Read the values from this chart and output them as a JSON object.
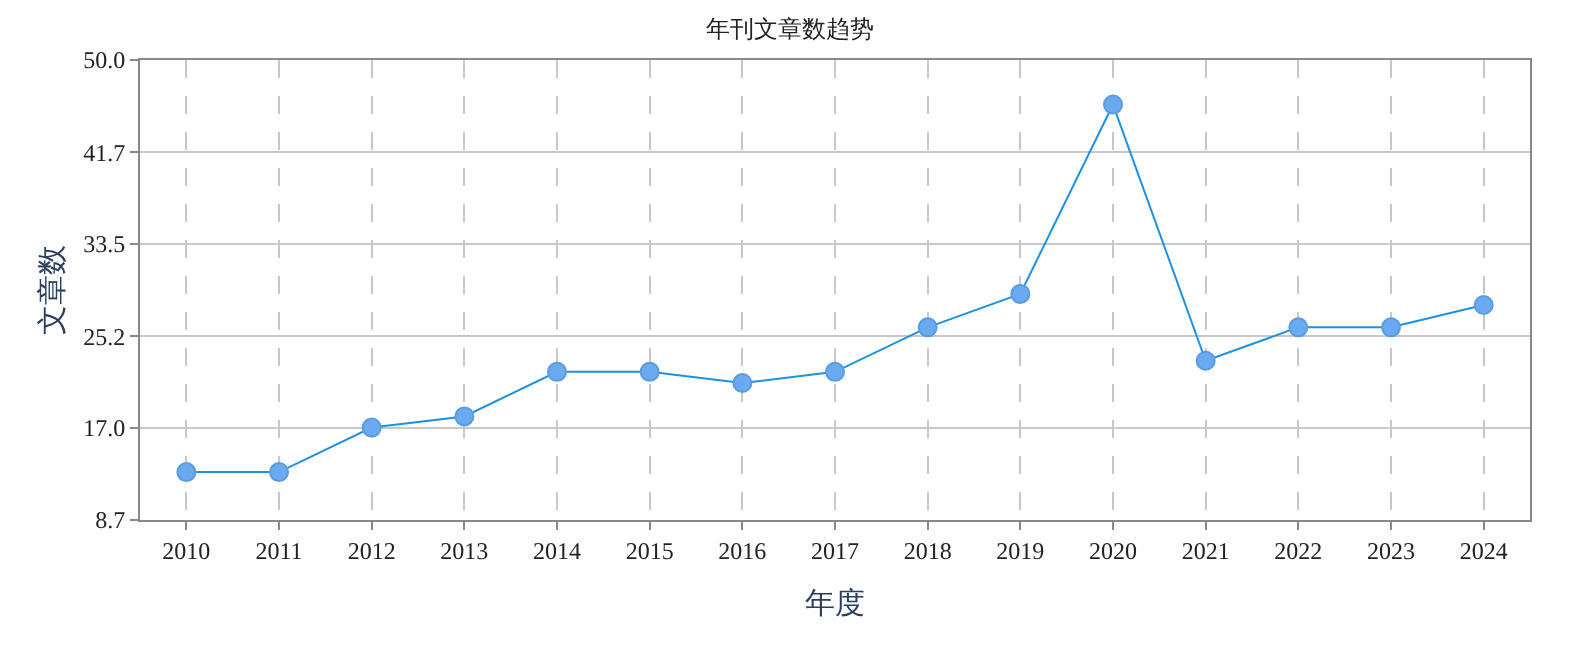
{
  "chart_data": {
    "type": "line",
    "title": "年刊文章数趋势",
    "xlabel": "年度",
    "ylabel": "文章数",
    "categories": [
      "2010",
      "2011",
      "2012",
      "2013",
      "2014",
      "2015",
      "2016",
      "2017",
      "2018",
      "2019",
      "2020",
      "2021",
      "2022",
      "2023",
      "2024"
    ],
    "series": [
      {
        "color": "#1e90e0",
        "values": [
          13,
          13,
          17,
          18,
          22,
          22,
          21,
          22,
          26,
          29,
          46,
          23,
          26,
          26,
          28
        ]
      }
    ],
    "ylim": [
      8.7,
      50.0
    ],
    "yticks": [
      {
        "value": 8.7,
        "label": "8.7"
      },
      {
        "value": 17.0,
        "label": "17.0"
      },
      {
        "value": 25.2,
        "label": "25.2"
      },
      {
        "value": 33.5,
        "label": "33.5"
      },
      {
        "value": 41.7,
        "label": "41.7"
      },
      {
        "value": 50.0,
        "label": "50.0"
      }
    ],
    "grid": true,
    "marker": "circle",
    "line_style": "solid"
  }
}
